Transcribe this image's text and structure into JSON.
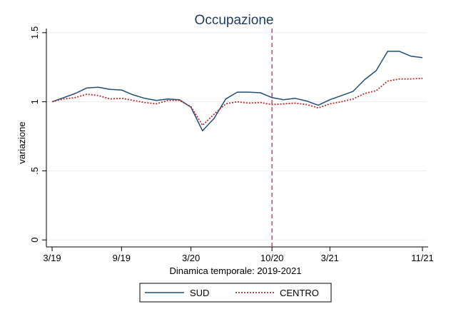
{
  "chart_data": {
    "type": "line",
    "title": "Occupazione",
    "xlabel": "Dinamica temporale: 2019-2021",
    "ylabel": "variazione",
    "x_tick_labels": [
      "3/19",
      "9/19",
      "3/20",
      "10/20",
      "3/21",
      "11/21"
    ],
    "x_tick_index": [
      0,
      6,
      12,
      19,
      24,
      32
    ],
    "x": [
      "3/19",
      "4/19",
      "5/19",
      "6/19",
      "7/19",
      "8/19",
      "9/19",
      "10/19",
      "11/19",
      "12/19",
      "1/20",
      "2/20",
      "3/20",
      "4/20",
      "5/20",
      "6/20",
      "7/20",
      "8/20",
      "9/20",
      "10/20",
      "11/20",
      "12/20",
      "1/21",
      "2/21",
      "3/21",
      "4/21",
      "5/21",
      "6/21",
      "7/21",
      "8/21",
      "9/21",
      "10/21",
      "11/21"
    ],
    "y_tick_labels": [
      "0",
      ".5",
      "1",
      "1.5"
    ],
    "y_tick_values": [
      0,
      0.5,
      1,
      1.5
    ],
    "ylim": [
      -0.03,
      1.53
    ],
    "grid": true,
    "reference_line": {
      "x_index": 19,
      "color": "#d04070",
      "style": "dashed"
    },
    "legend_position": "bottom",
    "series": [
      {
        "name": "SUD",
        "color": "#1f4e79",
        "style": "solid",
        "values": [
          1.0,
          1.03,
          1.06,
          1.1,
          1.105,
          1.09,
          1.085,
          1.05,
          1.025,
          1.01,
          1.02,
          1.015,
          0.96,
          0.79,
          0.88,
          1.02,
          1.07,
          1.07,
          1.065,
          1.03,
          1.015,
          1.025,
          1.005,
          0.975,
          1.015,
          1.045,
          1.075,
          1.16,
          1.225,
          1.365,
          1.365,
          1.33,
          1.32
        ]
      },
      {
        "name": "CENTRO",
        "color": "#b03030",
        "style": "dotted",
        "values": [
          1.0,
          1.02,
          1.03,
          1.055,
          1.045,
          1.02,
          1.025,
          1.01,
          0.995,
          0.985,
          1.01,
          1.01,
          0.965,
          0.83,
          0.91,
          0.985,
          1.0,
          0.99,
          0.995,
          0.98,
          0.985,
          0.99,
          0.98,
          0.955,
          0.985,
          1.0,
          1.02,
          1.06,
          1.08,
          1.15,
          1.165,
          1.165,
          1.17
        ]
      }
    ]
  }
}
